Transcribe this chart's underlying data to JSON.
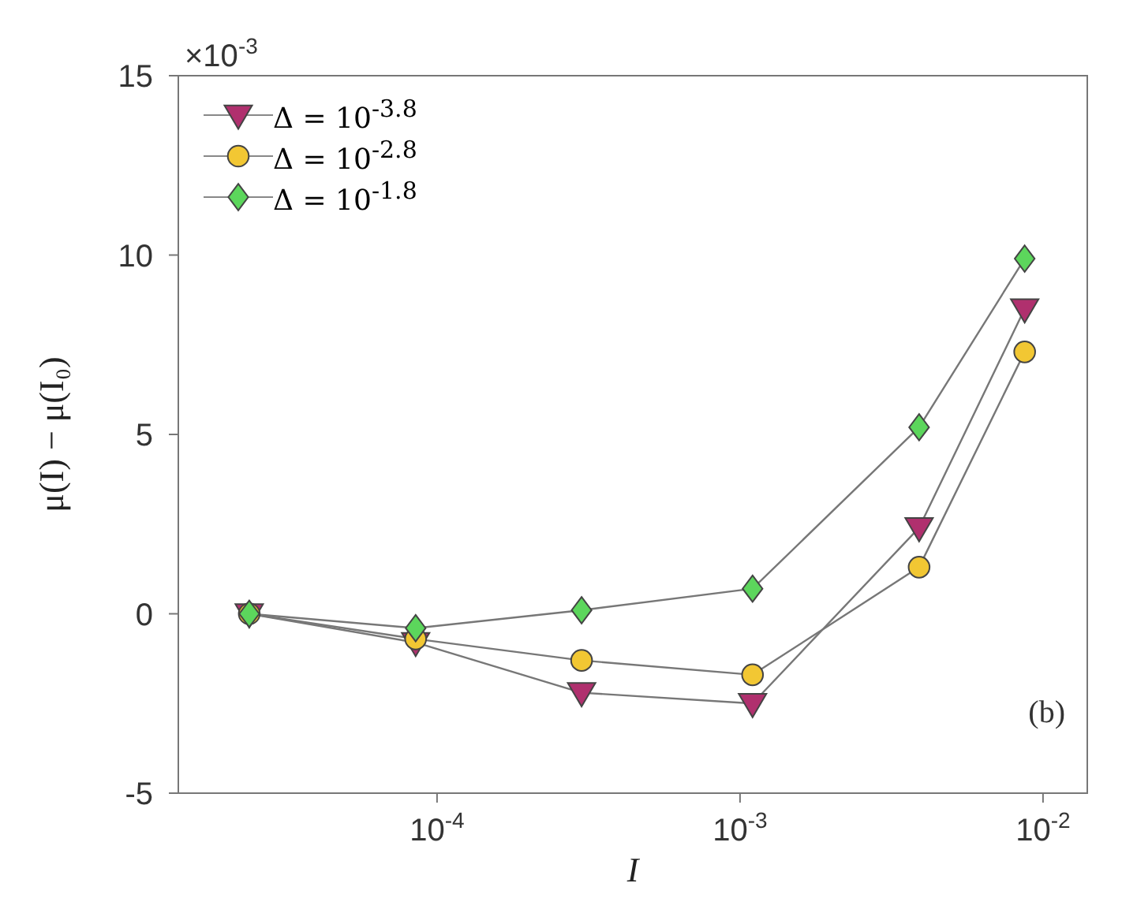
{
  "chart_data": {
    "type": "line",
    "xlabel": "I",
    "ylabel": "μ(I) − μ(I₀)",
    "annotations": [
      "×10$^{-3}$",
      "(b)"
    ],
    "log": "x",
    "grid": false,
    "legend": "top left",
    "line_style": "solid",
    "xlim": [
      1.4e-05,
      0.014
    ],
    "xticks": [
      {
        "value": 0.0001,
        "label": "10$^{-4}$"
      },
      {
        "value": 0.001,
        "label": "10$^{-3}$"
      },
      {
        "value": 0.01,
        "label": "10$^{-2}$"
      }
    ],
    "ylim": [
      -5,
      15
    ],
    "yticks": [
      -5,
      0,
      5,
      10,
      15
    ],
    "x": [
      2.4e-05,
      8.5e-05,
      0.0003,
      0.0011,
      0.0039,
      0.0087
    ],
    "series": [
      {
        "name": "Δ = 10$^{-3.8}$",
        "color": "#b0306e",
        "marker": "triangle",
        "values": [
          0,
          -0.8,
          -2.2,
          -2.5,
          2.4,
          8.5
        ]
      },
      {
        "name": "Δ = 10$^{-2.8}$",
        "color": "#f2c733",
        "marker": "circle",
        "values": [
          0,
          -0.7,
          -1.3,
          -1.7,
          1.3,
          7.3
        ]
      },
      {
        "name": "Δ = 10$^{-1.8}$",
        "color": "#5cd65c",
        "marker": "diamond",
        "values": [
          0,
          -0.4,
          0.1,
          0.7,
          5.2,
          9.9
        ]
      }
    ]
  }
}
